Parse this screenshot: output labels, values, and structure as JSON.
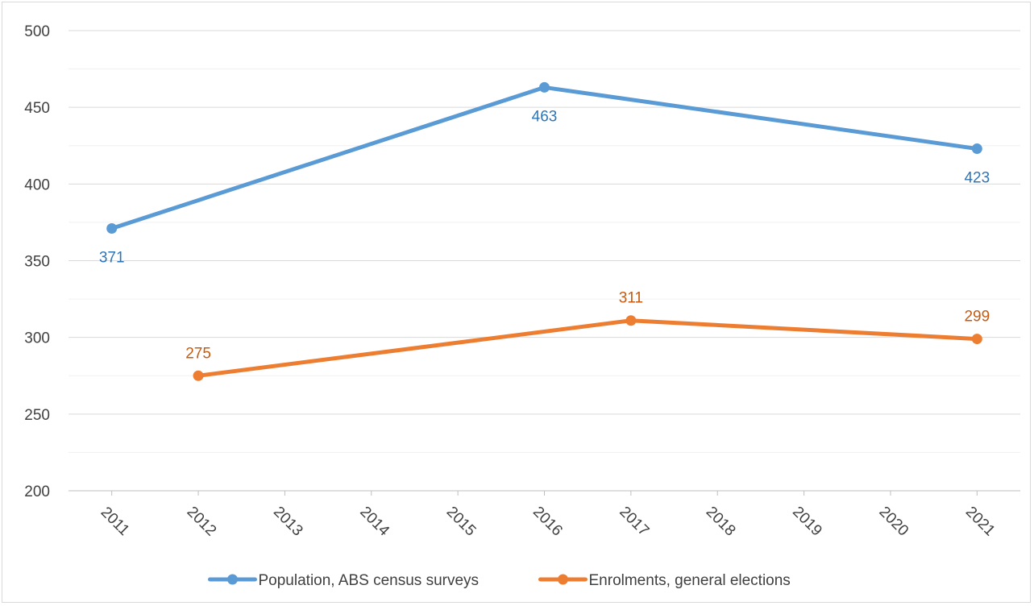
{
  "chart_data": {
    "type": "line",
    "title": "",
    "xlabel": "",
    "ylabel": "",
    "x": [
      2011,
      2012,
      2013,
      2014,
      2015,
      2016,
      2017,
      2018,
      2019,
      2020,
      2021
    ],
    "ylim": [
      200,
      500
    ],
    "yticks": [
      200,
      250,
      300,
      350,
      400,
      450,
      500
    ],
    "grid": true,
    "legend_position": "bottom",
    "series": [
      {
        "name": "Population, ABS census surveys",
        "color": "#5b9bd5",
        "points": [
          [
            2011,
            371
          ],
          [
            2016,
            463
          ],
          [
            2021,
            423
          ]
        ],
        "label_position": "below"
      },
      {
        "name": "Enrolments, general elections",
        "color": "#ed7d31",
        "points": [
          [
            2012,
            275
          ],
          [
            2017,
            311
          ],
          [
            2021,
            299
          ]
        ],
        "label_position": "above"
      }
    ]
  }
}
